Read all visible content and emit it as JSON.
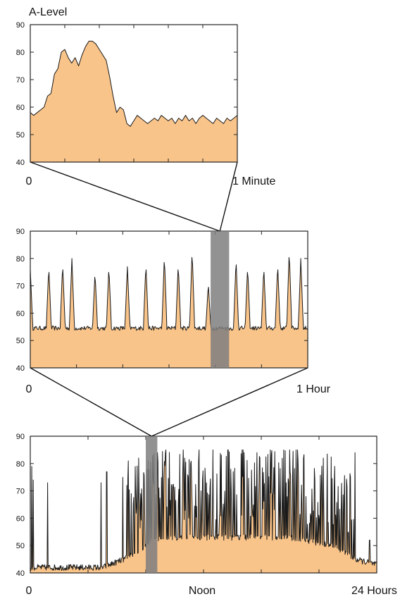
{
  "colors": {
    "fill": "#f9c48a",
    "line": "#1a1a1a",
    "highlight": "#7f7f7f"
  },
  "chart_data": [
    {
      "type": "area",
      "ylabel": "A-Level",
      "yticks": [
        40,
        50,
        60,
        70,
        80,
        90
      ],
      "ylim": [
        40,
        90
      ],
      "xlim": [
        0,
        60
      ],
      "xtick_labels": {
        "start": "0",
        "end": "1 Minute"
      },
      "values": [
        58,
        57,
        58,
        59,
        60,
        64,
        65,
        72,
        74,
        80,
        81,
        78,
        76,
        78,
        75,
        79,
        82,
        84,
        84,
        83,
        81,
        79,
        77,
        71,
        64,
        58,
        60,
        59,
        54,
        53,
        55,
        57,
        56,
        55,
        54,
        55,
        56,
        55,
        57,
        56,
        55,
        56,
        54,
        56,
        55,
        57,
        55,
        56,
        54,
        56,
        57,
        56,
        55,
        54,
        56,
        55,
        54,
        56,
        55,
        56,
        57
      ]
    },
    {
      "type": "area",
      "yticks": [
        40,
        50,
        60,
        70,
        80,
        90
      ],
      "ylim": [
        40,
        90
      ],
      "xlim": [
        0,
        60
      ],
      "xtick_labels": {
        "start": "0",
        "end": "1 Hour"
      },
      "highlight": [
        39,
        43
      ],
      "baseline": 54.5,
      "spikes": [
        [
          0,
          76
        ],
        [
          4,
          77
        ],
        [
          7,
          78
        ],
        [
          9,
          80
        ],
        [
          14,
          75
        ],
        [
          17,
          77
        ],
        [
          21,
          77
        ],
        [
          25,
          78
        ],
        [
          29,
          81
        ],
        [
          32,
          78
        ],
        [
          35,
          83
        ],
        [
          38.5,
          71
        ],
        [
          41.5,
          54
        ],
        [
          44.5,
          80
        ],
        [
          47,
          77
        ],
        [
          50.5,
          77
        ],
        [
          53.5,
          78
        ],
        [
          56,
          83
        ],
        [
          58.5,
          80
        ]
      ]
    },
    {
      "type": "area",
      "yticks": [
        40,
        50,
        60,
        70,
        80,
        90
      ],
      "ylim": [
        40,
        90
      ],
      "xlim": [
        0,
        24
      ],
      "xtick_labels": {
        "start": "0",
        "middle": "Noon",
        "end": "24 Hours"
      },
      "highlight": [
        8,
        8.8
      ],
      "baseline_profile": [
        [
          0,
          42
        ],
        [
          5,
          42
        ],
        [
          6.5,
          45
        ],
        [
          7.5,
          48
        ],
        [
          8.5,
          52
        ],
        [
          10,
          53
        ],
        [
          14,
          53
        ],
        [
          18,
          53
        ],
        [
          21,
          50
        ],
        [
          22.5,
          45
        ],
        [
          24,
          43
        ]
      ],
      "events": [
        [
          0.1,
          79
        ],
        [
          0.2,
          74
        ],
        [
          1.2,
          73
        ],
        [
          4.9,
          73
        ],
        [
          5.3,
          77
        ],
        [
          6.4,
          75
        ],
        [
          6.8,
          81
        ],
        [
          7.5,
          82
        ],
        [
          8.8,
          84
        ],
        [
          9.4,
          85
        ],
        [
          10.7,
          82
        ],
        [
          11.7,
          85
        ],
        [
          13.7,
          85
        ],
        [
          14.8,
          84
        ],
        [
          15.7,
          84
        ],
        [
          18.4,
          85
        ],
        [
          20.3,
          82
        ],
        [
          22.5,
          84
        ],
        [
          23.5,
          52
        ]
      ]
    }
  ]
}
